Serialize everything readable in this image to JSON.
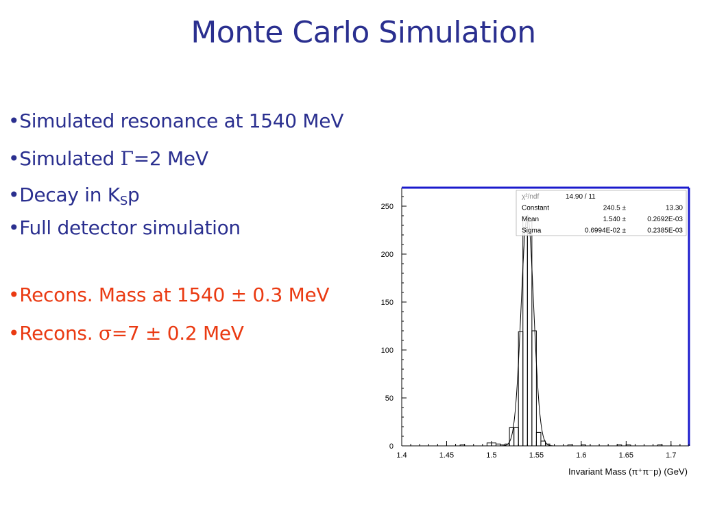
{
  "slide": {
    "title": "Monte Carlo Simulation",
    "bullets": [
      {
        "marker": "•",
        "text": "Simulated resonance at 1540 MeV"
      },
      {
        "marker": "•",
        "prefix": "Simulated ",
        "symbol": "Γ",
        "suffix": "=2 MeV"
      },
      {
        "marker": "•",
        "prefix": "Decay in K",
        "sub": "S",
        "suffix": "p"
      },
      {
        "marker": "•",
        "text": "Full detector simulation"
      },
      {
        "marker": "•",
        "text": "Recons. Mass at 1540 ± 0.3 MeV"
      },
      {
        "marker": "•",
        "prefix": "Recons. ",
        "symbol": "σ",
        "suffix": "=7 ± 0.2 MeV"
      }
    ],
    "colors": {
      "title": "#2a2f8f",
      "text": "#2a2f8f",
      "highlight": "#ea3a12",
      "frame": "#1a1acc"
    }
  },
  "chart_data": {
    "type": "histogram",
    "title": "",
    "xlabel": "Invariant Mass (π⁺π⁻p) (GeV)",
    "ylabel": "",
    "xlim": [
      1.4,
      1.72
    ],
    "ylim": [
      0,
      270
    ],
    "xticks": [
      "1.4",
      "1.45",
      "1.5",
      "1.55",
      "1.6",
      "1.65",
      "1.7"
    ],
    "yticks": [
      "0",
      "50",
      "100",
      "150",
      "200",
      "250"
    ],
    "grid": false,
    "bin_width": 0.005,
    "bins": [
      {
        "x0": 1.465,
        "y": 1
      },
      {
        "x0": 1.495,
        "y": 3
      },
      {
        "x0": 1.5,
        "y": 3
      },
      {
        "x0": 1.505,
        "y": 2
      },
      {
        "x0": 1.51,
        "y": 1
      },
      {
        "x0": 1.515,
        "y": 2
      },
      {
        "x0": 1.52,
        "y": 19
      },
      {
        "x0": 1.525,
        "y": 19
      },
      {
        "x0": 1.53,
        "y": 119
      },
      {
        "x0": 1.535,
        "y": 239
      },
      {
        "x0": 1.54,
        "y": 234
      },
      {
        "x0": 1.545,
        "y": 120
      },
      {
        "x0": 1.55,
        "y": 14
      },
      {
        "x0": 1.555,
        "y": 5
      },
      {
        "x0": 1.56,
        "y": 2
      },
      {
        "x0": 1.585,
        "y": 1
      },
      {
        "x0": 1.6,
        "y": 1
      },
      {
        "x0": 1.64,
        "y": 1
      },
      {
        "x0": 1.65,
        "y": 1
      },
      {
        "x0": 1.685,
        "y": 1
      }
    ],
    "fit": {
      "function": "gaussian",
      "constant": 240.5,
      "mean": 1.54,
      "sigma": 0.006994
    },
    "stats": [
      {
        "label": "χ²/ndf",
        "value": "14.90   /   11",
        "error": ""
      },
      {
        "label": "Constant",
        "value": "240.5 ±",
        "error": "13.30"
      },
      {
        "label": "Mean",
        "value": "1.540 ±",
        "error": "0.2692E-03"
      },
      {
        "label": "Sigma",
        "value": "0.6994E-02 ±",
        "error": "0.2385E-03"
      }
    ]
  }
}
